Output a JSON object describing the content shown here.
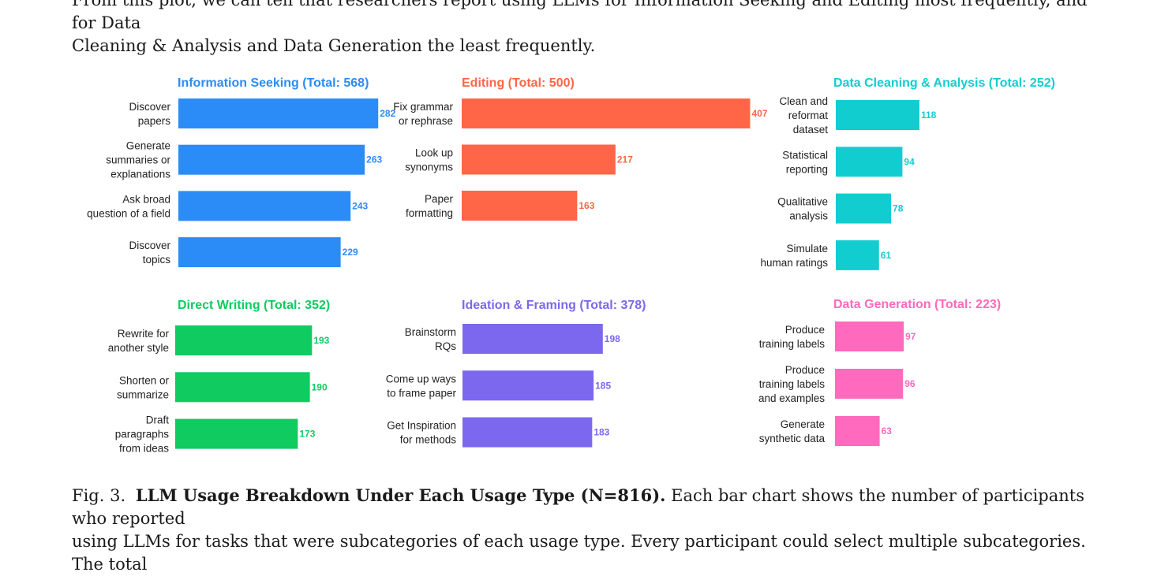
{
  "intro_text": {
    "line1": "From this plot, we can tell that researchers report using LLMs for Information Seeking and Editing most frequently, and for Data",
    "line2": "Cleaning & Analysis and Data Generation the least frequently."
  },
  "caption": {
    "label": "Fig. 3.",
    "title": "LLM Usage Breakdown Under Each Usage Type (N=816).",
    "line1_rest": "Each bar chart shows the number of participants who reported",
    "line2": "using LLMs for tasks that were subcategories of each usage type. Every participant could select multiple subcategories. The total"
  },
  "chart_data": [
    {
      "type": "bar",
      "orientation": "horizontal",
      "title": "Information Seeking (Total: 568)",
      "color": "#2b8cf7",
      "categories": [
        [
          "Discover",
          "papers"
        ],
        [
          "Generate",
          "summaries or",
          "explanations"
        ],
        [
          "Ask broad",
          "question of a field"
        ],
        [
          "Discover",
          "topics"
        ]
      ],
      "values": [
        282,
        263,
        243,
        229
      ]
    },
    {
      "type": "bar",
      "orientation": "horizontal",
      "title": "Editing (Total: 500)",
      "color": "#ff6648",
      "categories": [
        [
          "Fix grammar",
          "or rephrase"
        ],
        [
          "Look up",
          "synonyms"
        ],
        [
          "Paper",
          "formatting"
        ]
      ],
      "values": [
        407,
        217,
        163
      ]
    },
    {
      "type": "bar",
      "orientation": "horizontal",
      "title": "Data Cleaning & Analysis (Total: 252)",
      "color": "#12cdd0",
      "categories": [
        [
          "Clean and",
          "reformat",
          "dataset"
        ],
        [
          "Statistical",
          "reporting"
        ],
        [
          "Qualitative",
          "analysis"
        ],
        [
          "Simulate",
          "human ratings"
        ]
      ],
      "values": [
        118,
        94,
        78,
        61
      ]
    },
    {
      "type": "bar",
      "orientation": "horizontal",
      "title": "Direct Writing (Total: 352)",
      "color": "#0fcb60",
      "categories": [
        [
          "Rewrite for",
          "another style"
        ],
        [
          "Shorten or",
          "summarize"
        ],
        [
          "Draft",
          "paragraphs",
          "from ideas"
        ]
      ],
      "values": [
        193,
        190,
        173
      ]
    },
    {
      "type": "bar",
      "orientation": "horizontal",
      "title": "Ideation & Framing (Total: 378)",
      "color": "#7b68ee",
      "categories": [
        [
          "Brainstorm",
          "RQs"
        ],
        [
          "Come up  ways",
          "to frame paper"
        ],
        [
          "Get Inspiration",
          "for methods"
        ]
      ],
      "values": [
        198,
        185,
        183
      ]
    },
    {
      "type": "bar",
      "orientation": "horizontal",
      "title": "Data Generation (Total: 223)",
      "color": "#ff69be",
      "categories": [
        [
          "Produce",
          "training labels"
        ],
        [
          "Produce",
          "training labels",
          "and examples"
        ],
        [
          "Generate",
          "synthetic data"
        ]
      ],
      "values": [
        97,
        96,
        63
      ]
    }
  ]
}
